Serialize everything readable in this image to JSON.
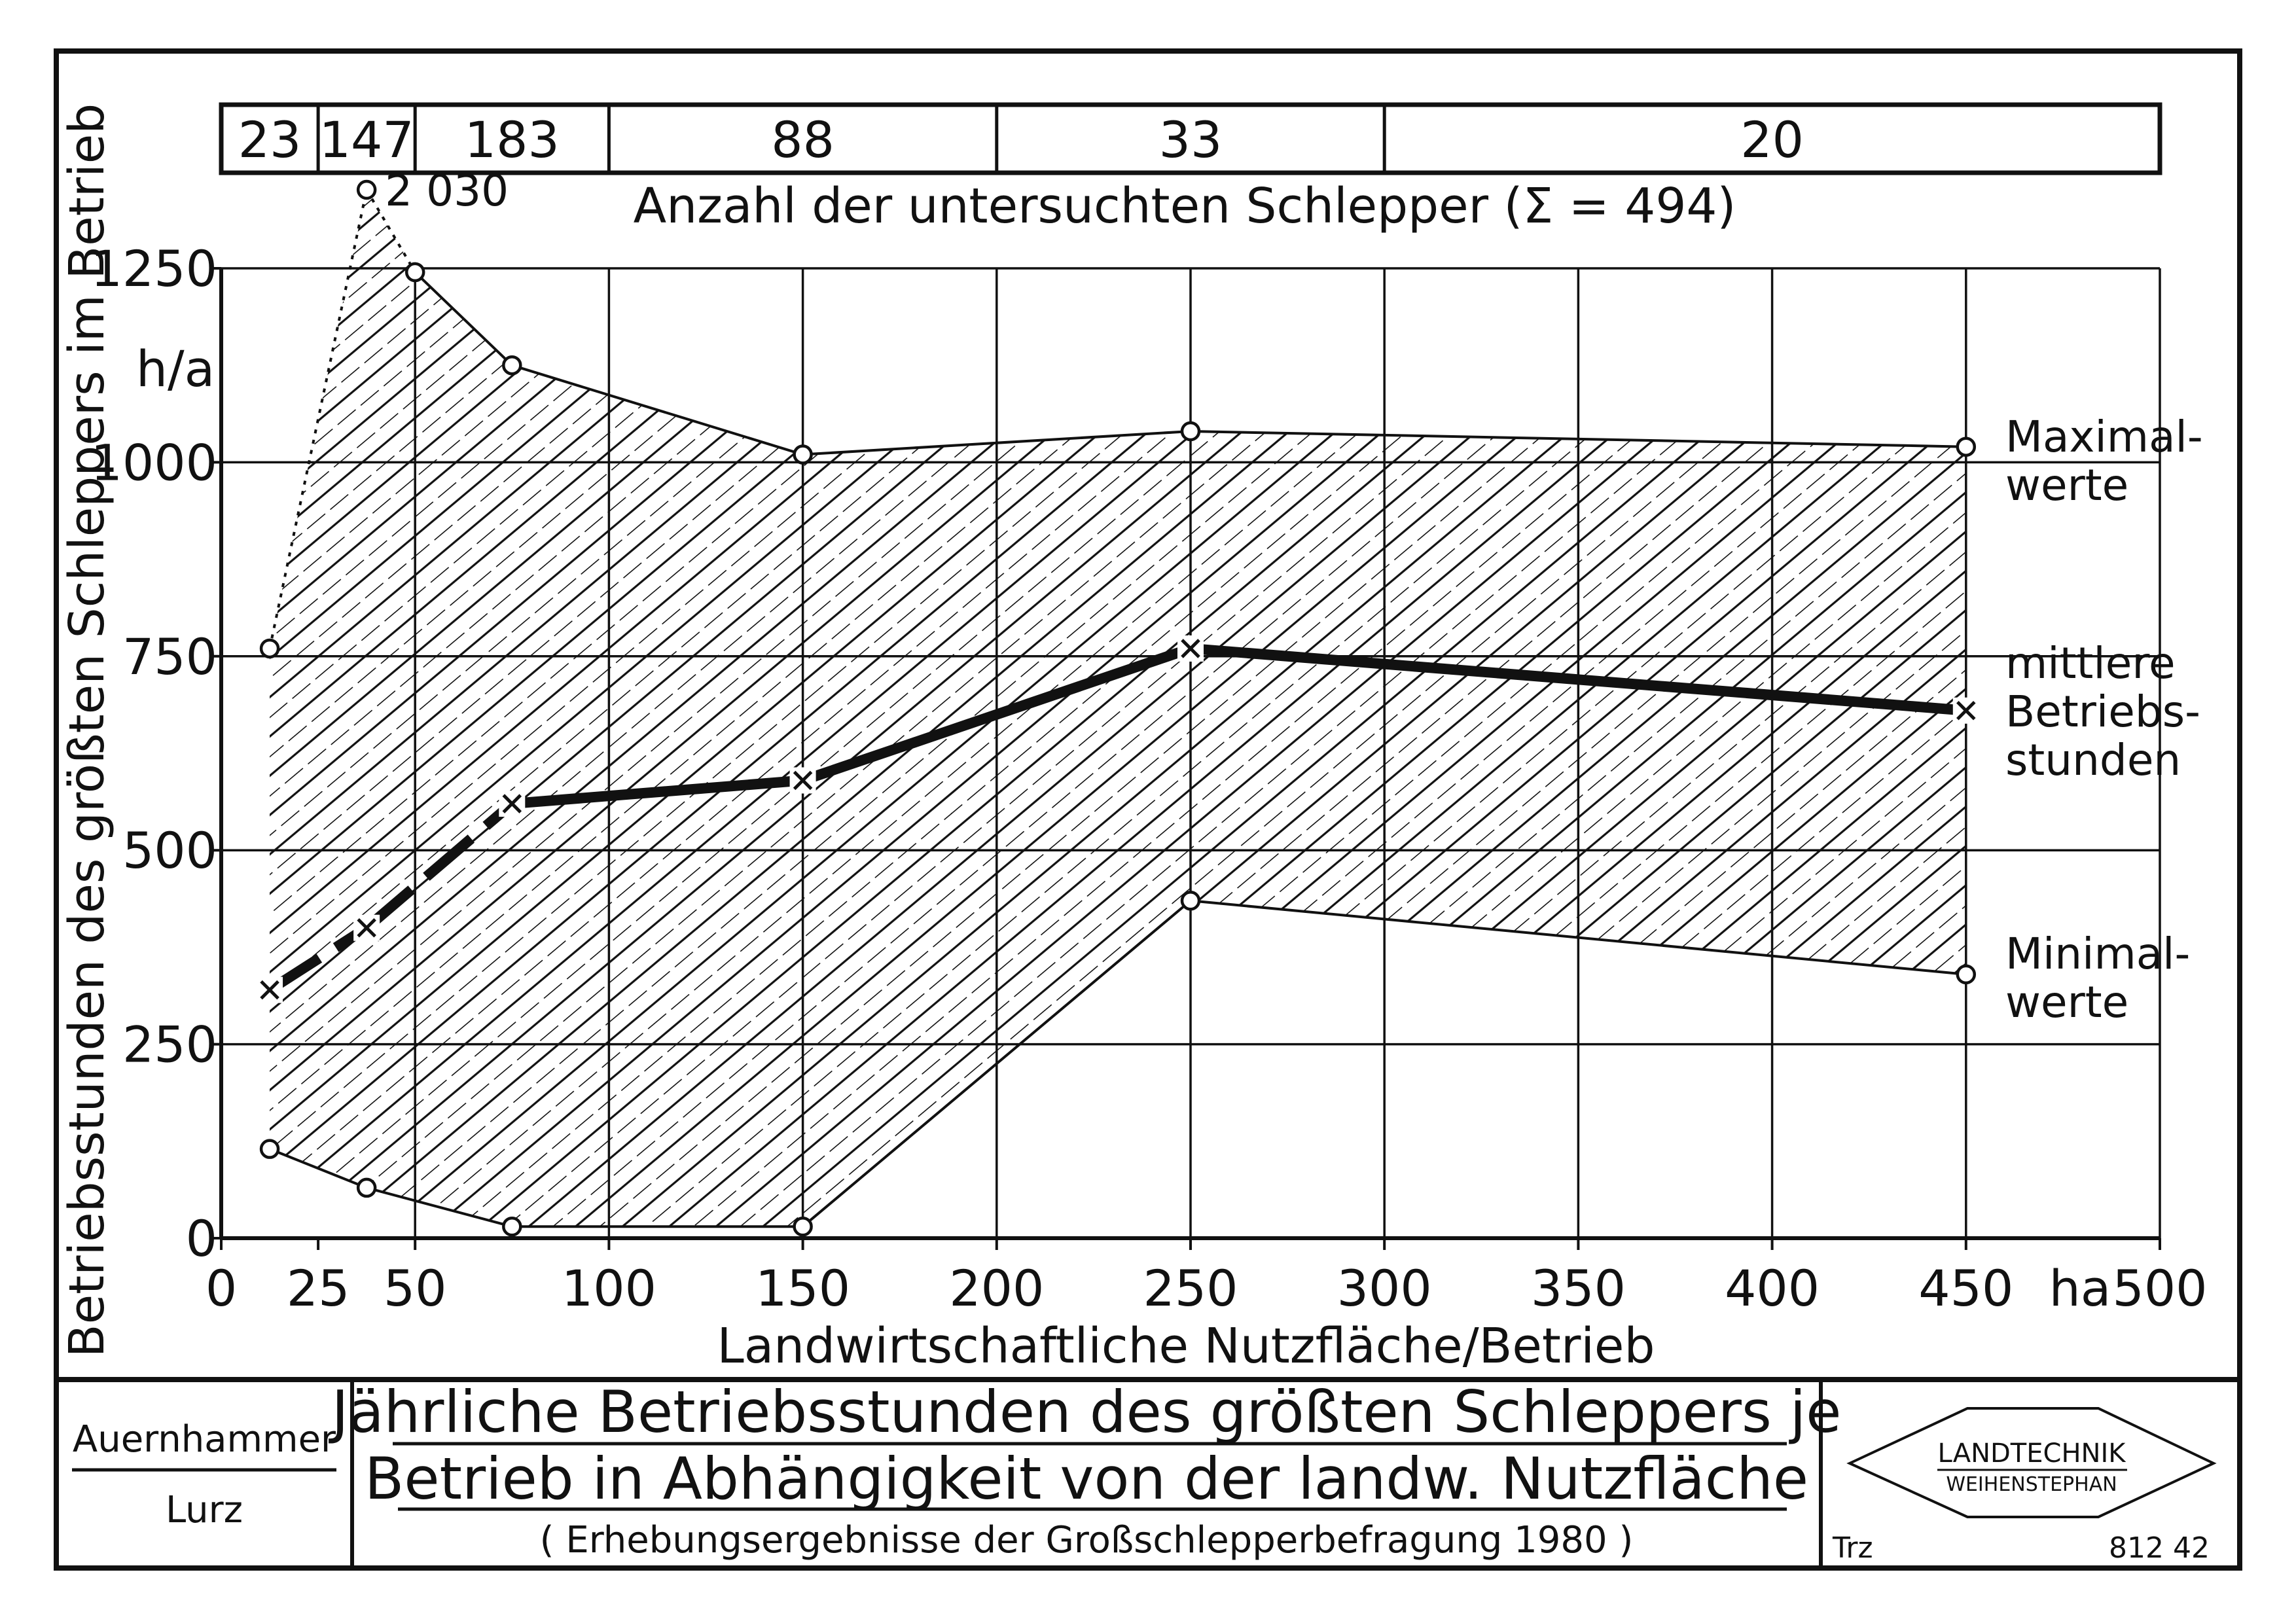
{
  "chart_data": {
    "type": "area",
    "title": "Jährliche Betriebsstunden des größten Schleppers je Betrieb in Abhängigkeit von der landw. Nutzfläche",
    "title_line1": "Jährliche Betriebsstunden des größten Schleppers je",
    "title_line2": "Betrieb in Abhängigkeit von der landw. Nutzfläche",
    "subtitle": "( Erhebungsergebnisse der Großschlepperbefragung 1980 )",
    "xlabel": "Landwirtschaftliche Nutzfläche/Betrieb",
    "x_unit": "ha",
    "ylabel": "Betriebsstunden des größten Schleppers im Betrieb",
    "y_unit": "h/a",
    "xlim": [
      0,
      500
    ],
    "ylim": [
      0,
      1250
    ],
    "x_ticks": [
      0,
      25,
      50,
      100,
      150,
      200,
      250,
      300,
      350,
      400,
      450,
      500
    ],
    "x_tick_labels": [
      "0",
      "25",
      "50",
      "100",
      "150",
      "200",
      "250",
      "300",
      "350",
      "400",
      "450",
      "500"
    ],
    "y_ticks": [
      0,
      250,
      500,
      750,
      1000,
      1250
    ],
    "y_tick_labels": [
      "0",
      "250",
      "500",
      "750",
      "1000",
      "1250"
    ],
    "grid": true,
    "x_grid": [
      0,
      50,
      100,
      150,
      200,
      250,
      300,
      350,
      400,
      450,
      500
    ],
    "y_grid": [
      0,
      250,
      500,
      750,
      1000,
      1250
    ],
    "count_header": "Anzahl der untersuchten Schlepper (Σ = 494)",
    "counts": [
      {
        "x0": 0,
        "x1": 25,
        "label": "23"
      },
      {
        "x0": 25,
        "x1": 50,
        "label": "147"
      },
      {
        "x0": 50,
        "x1": 100,
        "label": "183"
      },
      {
        "x0": 100,
        "x1": 200,
        "label": "88"
      },
      {
        "x0": 200,
        "x1": 300,
        "label": "33"
      },
      {
        "x0": 300,
        "x1": 500,
        "label": "20"
      }
    ],
    "series": [
      {
        "name": "Maximalwerte",
        "label_lines": [
          "Maximal-",
          "werte"
        ],
        "x": [
          12.5,
          37.5,
          50,
          75,
          150,
          250,
          450
        ],
        "y": [
          760,
          2030,
          1245,
          1125,
          1010,
          1040,
          1020
        ],
        "marker": "circle",
        "style": "thin"
      },
      {
        "name": "mittlere Betriebsstunden",
        "label_lines": [
          "mittlere",
          "Betriebs-",
          "stunden"
        ],
        "x": [
          12.5,
          37.5,
          75,
          150,
          250,
          450
        ],
        "y": [
          320,
          400,
          560,
          590,
          760,
          680
        ],
        "marker": "cross",
        "style": "bold-dashed"
      },
      {
        "name": "Minimalwerte",
        "label_lines": [
          "Minimal-",
          "werte"
        ],
        "x": [
          12.5,
          37.5,
          75,
          150,
          250,
          450
        ],
        "y": [
          115,
          65,
          15,
          15,
          435,
          340
        ],
        "marker": "circle",
        "style": "thin"
      }
    ],
    "annotations": [
      {
        "x": 37.5,
        "y": 2030,
        "text": "2 030"
      }
    ]
  },
  "authors": {
    "first": "Auernhammer",
    "second": "Lurz"
  },
  "logo": {
    "line1": "LANDTECHNIK",
    "line2": "WEIHENSTEPHAN"
  },
  "footer": {
    "initials": "Trz",
    "number": "812 42"
  },
  "colors": {
    "ink": "#111111",
    "paper": "#ffffff"
  }
}
